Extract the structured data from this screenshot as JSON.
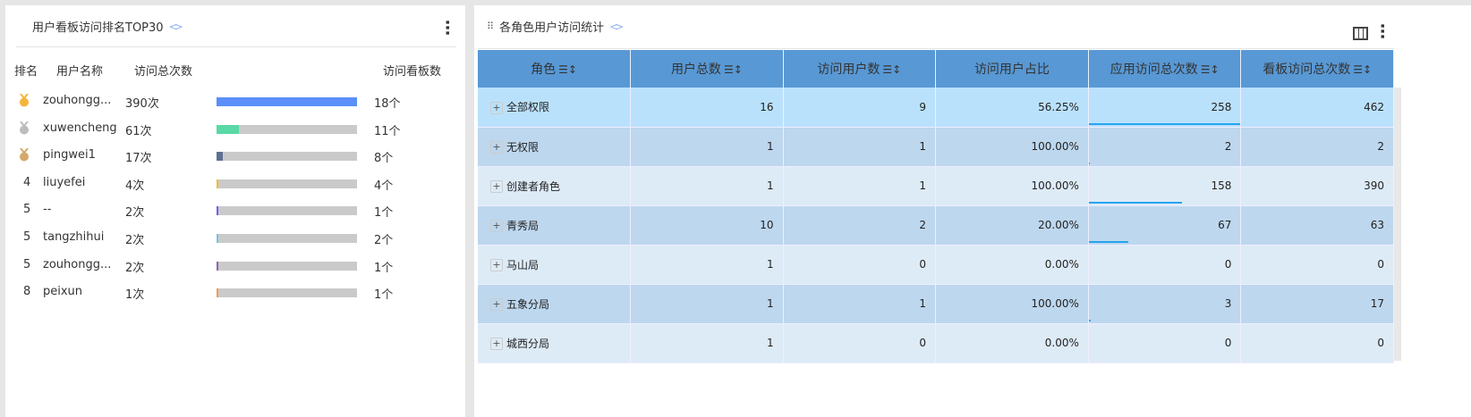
{
  "left": {
    "title": "用户看板访问排名TOP30",
    "headers": [
      "排名",
      "用户名称",
      "访问总次数",
      "访问看板数"
    ],
    "rows": [
      {
        "rank": "1",
        "medal": "gold",
        "name": "zouhongg...",
        "count": "390次",
        "value": 390,
        "boards": "18个",
        "color": "#5b8ff9"
      },
      {
        "rank": "2",
        "medal": "silver",
        "name": "xuwencheng",
        "count": "61次",
        "value": 61,
        "boards": "11个",
        "color": "#5ad8a6"
      },
      {
        "rank": "3",
        "medal": "bronze",
        "name": "pingwei1",
        "count": "17次",
        "value": 17,
        "boards": "8个",
        "color": "#5d7092"
      },
      {
        "rank": "4",
        "name": "liuyefei",
        "count": "4次",
        "value": 4,
        "boards": "4个",
        "color": "#f6bd16"
      },
      {
        "rank": "5",
        "name": "--",
        "count": "2次",
        "value": 2,
        "boards": "1个",
        "color": "#6f5ef9"
      },
      {
        "rank": "5",
        "name": "tangzhihui",
        "count": "2次",
        "value": 2,
        "boards": "2个",
        "color": "#6dc8ec"
      },
      {
        "rank": "5",
        "name": "zouhongg...",
        "count": "2次",
        "value": 2,
        "boards": "1个",
        "color": "#945fb9"
      },
      {
        "rank": "8",
        "name": "peixun",
        "count": "1次",
        "value": 1,
        "boards": "1个",
        "color": "#ff9845"
      }
    ]
  },
  "right": {
    "title": "各角色用户访问统计",
    "sort_icon": "☰↕",
    "headers": [
      "角色",
      "用户总数",
      "访问用户数",
      "访问用户占比",
      "应用访问总次数",
      "看板访问总次数"
    ],
    "sortable": [
      true,
      true,
      true,
      false,
      true,
      true
    ],
    "rows": [
      [
        "全部权限",
        "16",
        "9",
        "56.25%",
        "258",
        "462"
      ],
      [
        "无权限",
        "1",
        "1",
        "100.00%",
        "2",
        "2"
      ],
      [
        "创建者角色",
        "1",
        "1",
        "100.00%",
        "158",
        "390"
      ],
      [
        "青秀局",
        "10",
        "2",
        "20.00%",
        "67",
        "63"
      ],
      [
        "马山局",
        "1",
        "0",
        "0.00%",
        "0",
        "0"
      ],
      [
        "五象分局",
        "1",
        "1",
        "100.00%",
        "3",
        "17"
      ],
      [
        "城西分局",
        "1",
        "0",
        "0.00%",
        "0",
        "0"
      ]
    ]
  }
}
